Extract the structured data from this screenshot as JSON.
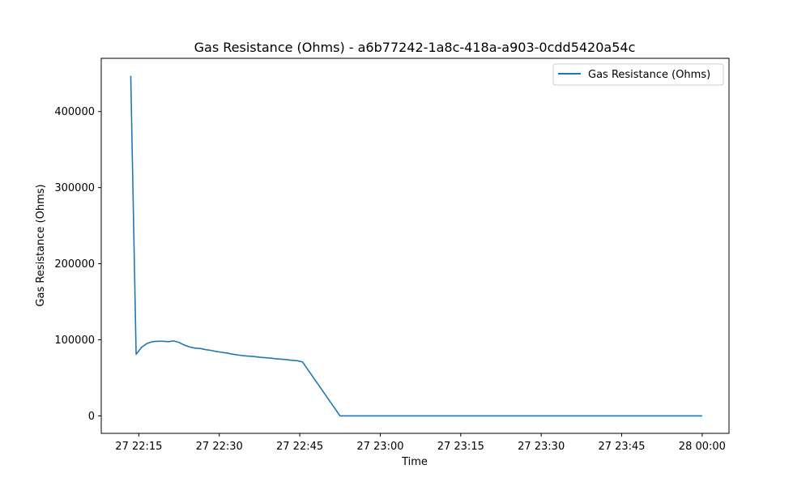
{
  "chart_data": {
    "type": "line",
    "title": "Gas Resistance (Ohms) - a6b77242-1a8c-418a-a903-0cdd5420a54c",
    "xlabel": "Time",
    "ylabel": "Gas Resistance (Ohms)",
    "x_tick_labels": [
      "27 22:15",
      "27 22:30",
      "27 22:45",
      "27 23:00",
      "27 23:15",
      "27 23:30",
      "27 23:45",
      "28 00:00"
    ],
    "x_ticks": [
      "27 22:15",
      "27 22:30",
      "27 22:45",
      "27 23:00",
      "27 23:15",
      "27 23:30",
      "27 23:45",
      "28 00:00"
    ],
    "xlim": [
      "27 22:08",
      "28 00:05"
    ],
    "y_ticks": [
      0,
      100000,
      200000,
      300000,
      400000
    ],
    "y_tick_labels": [
      "0",
      "100000",
      "200000",
      "300000",
      "400000"
    ],
    "ylim": [
      -23000,
      470000
    ],
    "grid": false,
    "legend": {
      "location": "upper right",
      "entries": [
        "Gas Resistance (Ohms)"
      ]
    },
    "series": [
      {
        "name": "Gas Resistance (Ohms)",
        "color": "#1f77b4",
        "points": [
          [
            "27 22:13:30",
            447000
          ],
          [
            "27 22:14:30",
            81000
          ],
          [
            "27 22:15:30",
            90000
          ],
          [
            "27 22:16:30",
            95000
          ],
          [
            "27 22:17:30",
            97500
          ],
          [
            "27 22:18:30",
            98000
          ],
          [
            "27 22:19:30",
            98000
          ],
          [
            "27 22:20:30",
            97500
          ],
          [
            "27 22:21:30",
            98500
          ],
          [
            "27 22:22:30",
            96500
          ],
          [
            "27 22:23:30",
            93000
          ],
          [
            "27 22:24:30",
            90500
          ],
          [
            "27 22:25:30",
            89000
          ],
          [
            "27 22:26:30",
            88500
          ],
          [
            "27 22:27:30",
            87000
          ],
          [
            "27 22:28:30",
            86000
          ],
          [
            "27 22:29:30",
            84500
          ],
          [
            "27 22:30:30",
            83500
          ],
          [
            "27 22:31:30",
            82500
          ],
          [
            "27 22:32:30",
            81000
          ],
          [
            "27 22:33:30",
            80000
          ],
          [
            "27 22:34:30",
            79000
          ],
          [
            "27 22:35:30",
            78500
          ],
          [
            "27 22:36:30",
            78000
          ],
          [
            "27 22:37:30",
            77000
          ],
          [
            "27 22:38:30",
            76500
          ],
          [
            "27 22:39:30",
            76000
          ],
          [
            "27 22:40:30",
            75000
          ],
          [
            "27 22:41:30",
            74500
          ],
          [
            "27 22:42:30",
            74000
          ],
          [
            "27 22:43:30",
            73000
          ],
          [
            "27 22:44:30",
            72500
          ],
          [
            "27 22:45:30",
            71000
          ],
          [
            "27 22:52:30",
            0
          ],
          [
            "28 00:00",
            0
          ]
        ]
      }
    ]
  }
}
